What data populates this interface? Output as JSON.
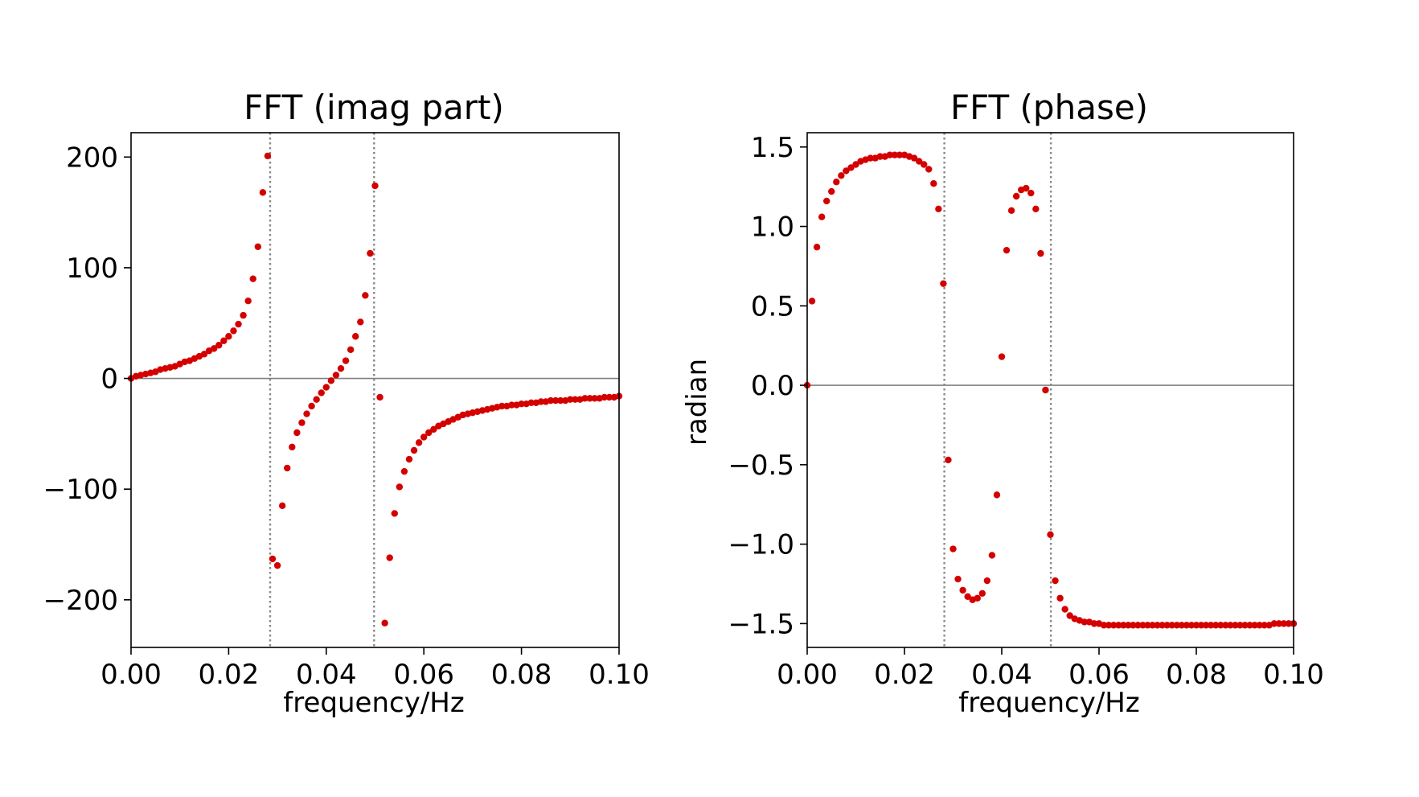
{
  "chart_data": [
    {
      "type": "scatter",
      "title": "FFT (imag part)",
      "xlabel": "frequency/Hz",
      "ylabel": "",
      "xlim": [
        0.0,
        0.1
      ],
      "ylim": [
        -243,
        222
      ],
      "xticks": [
        0.0,
        0.02,
        0.04,
        0.06,
        0.08,
        0.1
      ],
      "xtick_labels": [
        "0.00",
        "0.02",
        "0.04",
        "0.06",
        "0.08",
        "0.10"
      ],
      "yticks": [
        200,
        100,
        0,
        -100,
        -200
      ],
      "ytick_labels": [
        "200",
        "100",
        "0",
        "−100",
        "−200"
      ],
      "grid": false,
      "hlines": [
        0
      ],
      "vlines": [
        0.0285,
        0.0498
      ],
      "marker_color": "#d40000",
      "series": [
        {
          "x": [
            0.0,
            0.001,
            0.002,
            0.003,
            0.004,
            0.005,
            0.006,
            0.007,
            0.008,
            0.009,
            0.01,
            0.011,
            0.012,
            0.013,
            0.014,
            0.015,
            0.016,
            0.017,
            0.018,
            0.019,
            0.02,
            0.021,
            0.022,
            0.023,
            0.024,
            0.025,
            0.026,
            0.027,
            0.028,
            0.029,
            0.03,
            0.031,
            0.032,
            0.033,
            0.034,
            0.035,
            0.036,
            0.037,
            0.038,
            0.039,
            0.04,
            0.041,
            0.042,
            0.043,
            0.044,
            0.045,
            0.046,
            0.047,
            0.048,
            0.049,
            0.05,
            0.051,
            0.052,
            0.053,
            0.054,
            0.055,
            0.056,
            0.057,
            0.058,
            0.059,
            0.06,
            0.061,
            0.062,
            0.063,
            0.064,
            0.065,
            0.066,
            0.067,
            0.068,
            0.069,
            0.07,
            0.071,
            0.072,
            0.073,
            0.074,
            0.075,
            0.076,
            0.077,
            0.078,
            0.079,
            0.08,
            0.081,
            0.082,
            0.083,
            0.084,
            0.085,
            0.086,
            0.087,
            0.088,
            0.089,
            0.09,
            0.091,
            0.092,
            0.093,
            0.094,
            0.095,
            0.096,
            0.097,
            0.098,
            0.099,
            0.1
          ],
          "y": [
            0,
            2,
            3,
            4,
            5,
            6,
            8,
            9,
            10,
            11,
            13,
            15,
            16,
            18,
            20,
            22,
            25,
            27,
            30,
            34,
            38,
            43,
            49,
            57,
            70,
            90,
            119,
            168,
            201,
            -163,
            -169,
            -115,
            -81,
            -62,
            -49,
            -40,
            -32,
            -25,
            -19,
            -13,
            -8,
            -2,
            3,
            9,
            16,
            26,
            38,
            51,
            75,
            113,
            174,
            -17,
            -221,
            -162,
            -122,
            -98,
            -84,
            -73,
            -65,
            -58,
            -53,
            -49,
            -46,
            -43,
            -41,
            -39,
            -37,
            -35,
            -33,
            -32,
            -31,
            -30,
            -29,
            -28,
            -27,
            -26,
            -25,
            -25,
            -24,
            -24,
            -23,
            -23,
            -22,
            -22,
            -21,
            -21,
            -20,
            -20,
            -20,
            -20,
            -19,
            -19,
            -19,
            -18,
            -18,
            -18,
            -18,
            -17,
            -17,
            -17,
            -16
          ]
        }
      ]
    },
    {
      "type": "scatter",
      "title": "FFT (phase)",
      "xlabel": "frequency/Hz",
      "ylabel": "radian",
      "xlim": [
        0.0,
        0.1
      ],
      "ylim": [
        -1.65,
        1.59
      ],
      "xticks": [
        0.0,
        0.02,
        0.04,
        0.06,
        0.08,
        0.1
      ],
      "xtick_labels": [
        "0.00",
        "0.02",
        "0.04",
        "0.06",
        "0.08",
        "0.10"
      ],
      "yticks": [
        1.5,
        1.0,
        0.5,
        0.0,
        -0.5,
        -1.0,
        -1.5
      ],
      "ytick_labels": [
        "1.5",
        "1.0",
        "0.5",
        "0.0",
        "−0.5",
        "−1.0",
        "−1.5"
      ],
      "grid": false,
      "hlines": [
        0
      ],
      "vlines": [
        0.0282,
        0.0501
      ],
      "marker_color": "#d40000",
      "series": [
        {
          "x": [
            0.0,
            0.001,
            0.002,
            0.003,
            0.004,
            0.005,
            0.006,
            0.007,
            0.008,
            0.009,
            0.01,
            0.011,
            0.012,
            0.013,
            0.014,
            0.015,
            0.016,
            0.017,
            0.018,
            0.019,
            0.02,
            0.021,
            0.022,
            0.023,
            0.024,
            0.025,
            0.026,
            0.027,
            0.028,
            0.029,
            0.03,
            0.031,
            0.032,
            0.033,
            0.034,
            0.035,
            0.036,
            0.037,
            0.038,
            0.039,
            0.04,
            0.041,
            0.042,
            0.043,
            0.044,
            0.045,
            0.046,
            0.047,
            0.048,
            0.049,
            0.05,
            0.051,
            0.052,
            0.053,
            0.054,
            0.055,
            0.056,
            0.057,
            0.058,
            0.059,
            0.06,
            0.061,
            0.062,
            0.063,
            0.064,
            0.065,
            0.066,
            0.067,
            0.068,
            0.069,
            0.07,
            0.071,
            0.072,
            0.073,
            0.074,
            0.075,
            0.076,
            0.077,
            0.078,
            0.079,
            0.08,
            0.081,
            0.082,
            0.083,
            0.084,
            0.085,
            0.086,
            0.087,
            0.088,
            0.089,
            0.09,
            0.091,
            0.092,
            0.093,
            0.094,
            0.095,
            0.096,
            0.097,
            0.098,
            0.099,
            0.1
          ],
          "y": [
            0.0,
            0.53,
            0.87,
            1.06,
            1.16,
            1.22,
            1.28,
            1.32,
            1.35,
            1.37,
            1.39,
            1.41,
            1.42,
            1.43,
            1.43,
            1.44,
            1.44,
            1.45,
            1.45,
            1.45,
            1.45,
            1.44,
            1.43,
            1.41,
            1.39,
            1.36,
            1.27,
            1.11,
            0.64,
            -0.47,
            -1.03,
            -1.22,
            -1.29,
            -1.33,
            -1.35,
            -1.34,
            -1.31,
            -1.23,
            -1.07,
            -0.69,
            0.18,
            0.85,
            1.1,
            1.19,
            1.23,
            1.24,
            1.21,
            1.11,
            0.83,
            -0.03,
            -0.94,
            -1.23,
            -1.34,
            -1.41,
            -1.45,
            -1.47,
            -1.48,
            -1.49,
            -1.49,
            -1.5,
            -1.5,
            -1.51,
            -1.51,
            -1.51,
            -1.51,
            -1.51,
            -1.51,
            -1.51,
            -1.51,
            -1.51,
            -1.51,
            -1.51,
            -1.51,
            -1.51,
            -1.51,
            -1.51,
            -1.51,
            -1.51,
            -1.51,
            -1.51,
            -1.51,
            -1.51,
            -1.51,
            -1.51,
            -1.51,
            -1.51,
            -1.51,
            -1.51,
            -1.51,
            -1.51,
            -1.51,
            -1.51,
            -1.51,
            -1.51,
            -1.51,
            -1.51,
            -1.5,
            -1.5,
            -1.5,
            -1.5,
            -1.5
          ]
        }
      ]
    }
  ]
}
